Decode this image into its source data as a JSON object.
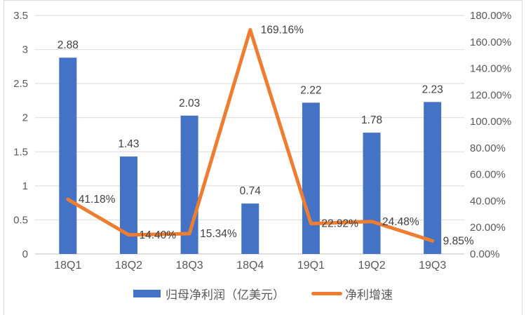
{
  "chart_data": {
    "type": "bar",
    "subtype": "combo-bar-line-dual-axis",
    "categories": [
      "18Q1",
      "18Q2",
      "18Q3",
      "18Q4",
      "19Q1",
      "19Q2",
      "19Q3"
    ],
    "series": [
      {
        "name": "归母净利润（亿美元）",
        "type": "bar",
        "axis": "left",
        "values": [
          2.88,
          1.43,
          2.03,
          0.74,
          2.22,
          1.78,
          2.23
        ],
        "labels": [
          "2.88",
          "1.43",
          "2.03",
          "0.74",
          "2.22",
          "1.78",
          "2.23"
        ],
        "color": "#4472C4"
      },
      {
        "name": "净利增速",
        "type": "line",
        "axis": "right",
        "values": [
          41.18,
          14.4,
          15.34,
          169.16,
          22.92,
          24.48,
          9.85
        ],
        "labels": [
          "41.18%",
          "14.40%",
          "15.34%",
          "169.16%",
          "22.92%",
          "24.48%",
          "9.85%"
        ],
        "color": "#ED7D31"
      }
    ],
    "left_axis": {
      "min": 0,
      "max": 3.5,
      "step": 0.5,
      "ticks": [
        "0",
        "0.5",
        "1",
        "1.5",
        "2",
        "2.5",
        "3",
        "3.5"
      ]
    },
    "right_axis": {
      "min": 0,
      "max": 180,
      "step": 20,
      "ticks": [
        "0.00%",
        "20.00%",
        "40.00%",
        "60.00%",
        "80.00%",
        "100.00%",
        "120.00%",
        "140.00%",
        "160.00%",
        "180.00%"
      ]
    },
    "title": "",
    "xlabel": "",
    "ylabel": "",
    "grid": "horizontal",
    "legend_position": "bottom"
  },
  "legend": {
    "items": [
      {
        "label": "归母净利润（亿美元）",
        "swatch": "bar",
        "color": "#4472C4"
      },
      {
        "label": "净利增速",
        "swatch": "line",
        "color": "#ED7D31"
      }
    ]
  },
  "colors": {
    "bar": "#4472C4",
    "line": "#ED7D31",
    "gridline": "#D9D9D9",
    "baseline": "#BFBFBF",
    "axis_text": "#595959",
    "data_label": "#404040",
    "frame_border": "#D9D9D9",
    "background": "#FFFFFF"
  }
}
